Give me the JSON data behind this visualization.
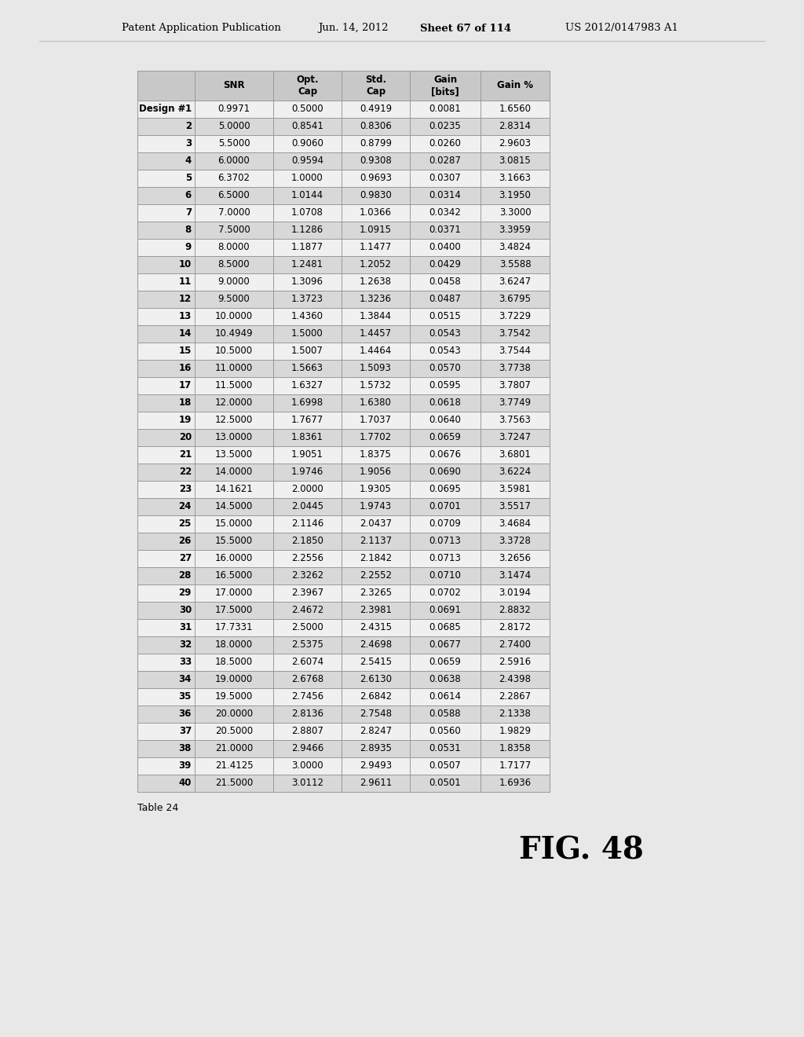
{
  "header_line1": "Patent Application Publication",
  "header_date": "Jun. 14, 2012",
  "header_sheet": "Sheet 67 of 114",
  "header_patent": "US 2012/0147983 A1",
  "col_headers": [
    "SNR",
    "Opt.\nCap",
    "Std.\nCap",
    "Gain\n[bits]",
    "Gain %"
  ],
  "design_label": "Design #",
  "table_caption": "Table 24",
  "fig_label": "FIG. 48",
  "rows": [
    [
      1,
      "0.9971",
      "0.5000",
      "0.4919",
      "0.0081",
      "1.6560"
    ],
    [
      2,
      "5.0000",
      "0.8541",
      "0.8306",
      "0.0235",
      "2.8314"
    ],
    [
      3,
      "5.5000",
      "0.9060",
      "0.8799",
      "0.0260",
      "2.9603"
    ],
    [
      4,
      "6.0000",
      "0.9594",
      "0.9308",
      "0.0287",
      "3.0815"
    ],
    [
      5,
      "6.3702",
      "1.0000",
      "0.9693",
      "0.0307",
      "3.1663"
    ],
    [
      6,
      "6.5000",
      "1.0144",
      "0.9830",
      "0.0314",
      "3.1950"
    ],
    [
      7,
      "7.0000",
      "1.0708",
      "1.0366",
      "0.0342",
      "3.3000"
    ],
    [
      8,
      "7.5000",
      "1.1286",
      "1.0915",
      "0.0371",
      "3.3959"
    ],
    [
      9,
      "8.0000",
      "1.1877",
      "1.1477",
      "0.0400",
      "3.4824"
    ],
    [
      10,
      "8.5000",
      "1.2481",
      "1.2052",
      "0.0429",
      "3.5588"
    ],
    [
      11,
      "9.0000",
      "1.3096",
      "1.2638",
      "0.0458",
      "3.6247"
    ],
    [
      12,
      "9.5000",
      "1.3723",
      "1.3236",
      "0.0487",
      "3.6795"
    ],
    [
      13,
      "10.0000",
      "1.4360",
      "1.3844",
      "0.0515",
      "3.7229"
    ],
    [
      14,
      "10.4949",
      "1.5000",
      "1.4457",
      "0.0543",
      "3.7542"
    ],
    [
      15,
      "10.5000",
      "1.5007",
      "1.4464",
      "0.0543",
      "3.7544"
    ],
    [
      16,
      "11.0000",
      "1.5663",
      "1.5093",
      "0.0570",
      "3.7738"
    ],
    [
      17,
      "11.5000",
      "1.6327",
      "1.5732",
      "0.0595",
      "3.7807"
    ],
    [
      18,
      "12.0000",
      "1.6998",
      "1.6380",
      "0.0618",
      "3.7749"
    ],
    [
      19,
      "12.5000",
      "1.7677",
      "1.7037",
      "0.0640",
      "3.7563"
    ],
    [
      20,
      "13.0000",
      "1.8361",
      "1.7702",
      "0.0659",
      "3.7247"
    ],
    [
      21,
      "13.5000",
      "1.9051",
      "1.8375",
      "0.0676",
      "3.6801"
    ],
    [
      22,
      "14.0000",
      "1.9746",
      "1.9056",
      "0.0690",
      "3.6224"
    ],
    [
      23,
      "14.1621",
      "2.0000",
      "1.9305",
      "0.0695",
      "3.5981"
    ],
    [
      24,
      "14.5000",
      "2.0445",
      "1.9743",
      "0.0701",
      "3.5517"
    ],
    [
      25,
      "15.0000",
      "2.1146",
      "2.0437",
      "0.0709",
      "3.4684"
    ],
    [
      26,
      "15.5000",
      "2.1850",
      "2.1137",
      "0.0713",
      "3.3728"
    ],
    [
      27,
      "16.0000",
      "2.2556",
      "2.1842",
      "0.0713",
      "3.2656"
    ],
    [
      28,
      "16.5000",
      "2.3262",
      "2.2552",
      "0.0710",
      "3.1474"
    ],
    [
      29,
      "17.0000",
      "2.3967",
      "2.3265",
      "0.0702",
      "3.0194"
    ],
    [
      30,
      "17.5000",
      "2.4672",
      "2.3981",
      "0.0691",
      "2.8832"
    ],
    [
      31,
      "17.7331",
      "2.5000",
      "2.4315",
      "0.0685",
      "2.8172"
    ],
    [
      32,
      "18.0000",
      "2.5375",
      "2.4698",
      "0.0677",
      "2.7400"
    ],
    [
      33,
      "18.5000",
      "2.6074",
      "2.5415",
      "0.0659",
      "2.5916"
    ],
    [
      34,
      "19.0000",
      "2.6768",
      "2.6130",
      "0.0638",
      "2.4398"
    ],
    [
      35,
      "19.5000",
      "2.7456",
      "2.6842",
      "0.0614",
      "2.2867"
    ],
    [
      36,
      "20.0000",
      "2.8136",
      "2.7548",
      "0.0588",
      "2.1338"
    ],
    [
      37,
      "20.5000",
      "2.8807",
      "2.8247",
      "0.0560",
      "1.9829"
    ],
    [
      38,
      "21.0000",
      "2.9466",
      "2.8935",
      "0.0531",
      "1.8358"
    ],
    [
      39,
      "21.4125",
      "3.0000",
      "2.9493",
      "0.0507",
      "1.7177"
    ],
    [
      40,
      "21.5000",
      "3.0112",
      "2.9611",
      "0.0501",
      "1.6936"
    ]
  ],
  "bg_color": "#e8e8e8",
  "row_bg_even": "#d8d8d8",
  "row_bg_odd": "#f0f0f0",
  "border_color": "#999999",
  "text_color": "#000000"
}
